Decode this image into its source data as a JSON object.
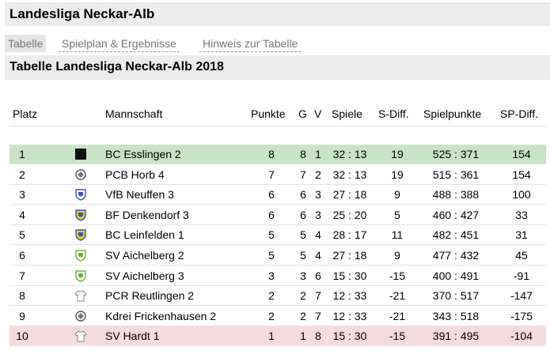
{
  "header": {
    "title": "Landesliga Neckar-Alb"
  },
  "tabs": [
    {
      "label": "Tabelle",
      "active": true
    },
    {
      "label": "Spielplan & Ergebnisse",
      "active": false
    },
    {
      "label": "Hinweis zur Tabelle",
      "active": false
    }
  ],
  "section": {
    "title": "Tabelle Landesliga Neckar-Alb 2018"
  },
  "table": {
    "headers": {
      "platz": "Platz",
      "mannschaft": "Mannschaft",
      "punkte": "Punkte",
      "g": "G",
      "v": "V",
      "spiele": "Spiele",
      "sdiff": "S-Diff.",
      "spielpunkte": "Spielpunkte",
      "spdiff": "SP-Diff."
    },
    "rows": [
      {
        "platz": "1",
        "team": "BC Esslingen 2",
        "punkte": "8",
        "g": "8",
        "v": "1",
        "spiele": "32 : 13",
        "sdiff": "19",
        "spielpunkte": "525 : 371",
        "spdiff": "154",
        "logo": "black-square-icon",
        "status": "promotion"
      },
      {
        "platz": "2",
        "team": "PCB Horb 4",
        "punkte": "7",
        "g": "7",
        "v": "2",
        "spiele": "32 : 13",
        "sdiff": "19",
        "spielpunkte": "515 : 361",
        "spdiff": "154",
        "logo": "club-crest-icon",
        "status": ""
      },
      {
        "platz": "3",
        "team": "VfB Neuffen 3",
        "punkte": "6",
        "g": "6",
        "v": "3",
        "spiele": "27 : 18",
        "sdiff": "9",
        "spielpunkte": "488 : 388",
        "spdiff": "100",
        "logo": "club-shield-icon",
        "status": ""
      },
      {
        "platz": "4",
        "team": "BF Denkendorf 3",
        "punkte": "6",
        "g": "6",
        "v": "3",
        "spiele": "25 : 20",
        "sdiff": "5",
        "spielpunkte": "460 : 427",
        "spdiff": "33",
        "logo": "club-shield-icon",
        "status": ""
      },
      {
        "platz": "5",
        "team": "BC Leinfelden 1",
        "punkte": "5",
        "g": "5",
        "v": "4",
        "spiele": "28 : 17",
        "sdiff": "11",
        "spielpunkte": "482 : 451",
        "spdiff": "31",
        "logo": "club-shield-icon",
        "status": ""
      },
      {
        "platz": "6",
        "team": "SV Aichelberg 2",
        "punkte": "5",
        "g": "5",
        "v": "4",
        "spiele": "27 : 18",
        "sdiff": "9",
        "spielpunkte": "477 : 432",
        "spdiff": "45",
        "logo": "club-shield-icon",
        "status": ""
      },
      {
        "platz": "7",
        "team": "SV Aichelberg 3",
        "punkte": "3",
        "g": "3",
        "v": "6",
        "spiele": "15 : 30",
        "sdiff": "-15",
        "spielpunkte": "400 : 491",
        "spdiff": "-91",
        "logo": "club-shield-icon",
        "status": ""
      },
      {
        "platz": "8",
        "team": "PCR Reutlingen 2",
        "punkte": "2",
        "g": "2",
        "v": "7",
        "spiele": "12 : 33",
        "sdiff": "-21",
        "spielpunkte": "370 : 517",
        "spdiff": "-147",
        "logo": "shirt-icon",
        "status": ""
      },
      {
        "platz": "9",
        "team": "Kdrei Frickenhausen 2",
        "punkte": "2",
        "g": "2",
        "v": "7",
        "spiele": "12 : 33",
        "sdiff": "-21",
        "spielpunkte": "343 : 518",
        "spdiff": "-175",
        "logo": "club-crest-icon",
        "status": ""
      },
      {
        "platz": "10",
        "team": "SV Hardt 1",
        "punkte": "1",
        "g": "1",
        "v": "8",
        "spiele": "15 : 30",
        "sdiff": "-15",
        "spielpunkte": "391 : 495",
        "spdiff": "-104",
        "logo": "shirt-icon",
        "status": "relegation"
      }
    ]
  },
  "colors": {
    "header_bg": "#ececec",
    "promotion_row": "#c9e3c7",
    "relegation_row": "#f5dcdc",
    "logo_yellow": "#e2d11a",
    "logo_green": "#6fb43a",
    "logo_blue": "#3b57b8"
  }
}
